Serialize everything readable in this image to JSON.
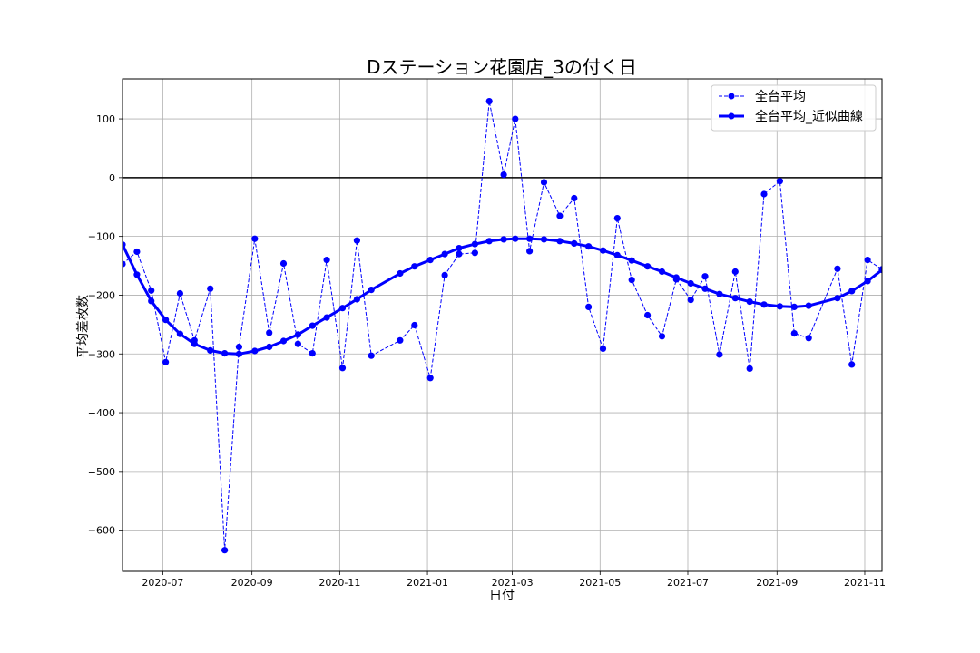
{
  "chart_data": {
    "type": "line",
    "title": "Dステーション花園店_3の付く日",
    "xlabel": "日付",
    "ylabel": "平均差枚数",
    "xlim": [
      "2020-06-03",
      "2021-11-13"
    ],
    "ylim": [
      -670,
      168
    ],
    "yticks": [
      100,
      0,
      -100,
      -200,
      -300,
      -400,
      -500,
      -600
    ],
    "ytick_labels": [
      "100",
      "0",
      "−100",
      "−200",
      "−300",
      "−400",
      "−500",
      "−600"
    ],
    "xticks": [
      "2020-07-01",
      "2020-09-01",
      "2020-11-01",
      "2021-01-01",
      "2021-03-01",
      "2021-05-01",
      "2021-07-01",
      "2021-09-01",
      "2021-11-01"
    ],
    "xtick_labels": [
      "2020-07",
      "2020-09",
      "2020-11",
      "2021-01",
      "2021-03",
      "2021-05",
      "2021-07",
      "2021-09",
      "2021-11"
    ],
    "grid": true,
    "hline": 0,
    "legend": {
      "position": "top-right"
    },
    "series": [
      {
        "name": "全台平均",
        "style": "dashed",
        "color": "#0000ff",
        "points": [
          [
            "2020-06-03",
            -147
          ],
          [
            "2020-06-13",
            -126
          ],
          [
            "2020-06-23",
            -192
          ],
          [
            "2020-07-03",
            -314
          ],
          [
            "2020-07-13",
            -197
          ],
          [
            "2020-07-23",
            -277
          ],
          [
            "2020-08-03",
            -189
          ],
          [
            "2020-08-13",
            -634
          ],
          [
            "2020-08-23",
            -288
          ],
          [
            "2020-09-03",
            -104
          ],
          [
            "2020-09-13",
            -264
          ],
          [
            "2020-09-23",
            -146
          ],
          [
            "2020-10-03",
            -283
          ],
          [
            "2020-10-13",
            -299
          ],
          [
            "2020-10-23",
            -140
          ],
          [
            "2020-11-03",
            -324
          ],
          [
            "2020-11-13",
            -107
          ],
          [
            "2020-11-23",
            -303
          ],
          [
            "2020-12-13",
            -277
          ],
          [
            "2020-12-23",
            -251
          ],
          [
            "2021-01-03",
            -341
          ],
          [
            "2021-01-13",
            -166
          ],
          [
            "2021-01-23",
            -130
          ],
          [
            "2021-02-03",
            -128
          ],
          [
            "2021-02-13",
            130
          ],
          [
            "2021-02-23",
            5
          ],
          [
            "2021-03-03",
            100
          ],
          [
            "2021-03-13",
            -125
          ],
          [
            "2021-03-23",
            -8
          ],
          [
            "2021-04-03",
            -65
          ],
          [
            "2021-04-13",
            -35
          ],
          [
            "2021-04-23",
            -220
          ],
          [
            "2021-05-03",
            -291
          ],
          [
            "2021-05-13",
            -69
          ],
          [
            "2021-05-23",
            -174
          ],
          [
            "2021-06-03",
            -234
          ],
          [
            "2021-06-13",
            -270
          ],
          [
            "2021-06-23",
            -173
          ],
          [
            "2021-07-03",
            -208
          ],
          [
            "2021-07-13",
            -168
          ],
          [
            "2021-07-23",
            -301
          ],
          [
            "2021-08-03",
            -160
          ],
          [
            "2021-08-13",
            -325
          ],
          [
            "2021-08-23",
            -28
          ],
          [
            "2021-09-03",
            -6
          ],
          [
            "2021-09-13",
            -265
          ],
          [
            "2021-09-23",
            -273
          ],
          [
            "2021-10-13",
            -155
          ],
          [
            "2021-10-23",
            -318
          ],
          [
            "2021-11-03",
            -140
          ],
          [
            "2021-11-13",
            -156
          ]
        ]
      },
      {
        "name": "全台平均_近似曲線",
        "style": "solid",
        "color": "#0000ff",
        "points": [
          [
            "2020-06-03",
            -114
          ],
          [
            "2020-06-13",
            -165
          ],
          [
            "2020-06-23",
            -210
          ],
          [
            "2020-07-03",
            -242
          ],
          [
            "2020-07-13",
            -266
          ],
          [
            "2020-07-23",
            -283
          ],
          [
            "2020-08-03",
            -294
          ],
          [
            "2020-08-13",
            -299
          ],
          [
            "2020-08-23",
            -300
          ],
          [
            "2020-09-03",
            -295
          ],
          [
            "2020-09-13",
            -288
          ],
          [
            "2020-09-23",
            -278
          ],
          [
            "2020-10-03",
            -267
          ],
          [
            "2020-10-13",
            -252
          ],
          [
            "2020-10-23",
            -238
          ],
          [
            "2020-11-03",
            -222
          ],
          [
            "2020-11-13",
            -207
          ],
          [
            "2020-11-23",
            -191
          ],
          [
            "2020-12-13",
            -163
          ],
          [
            "2020-12-23",
            -151
          ],
          [
            "2021-01-03",
            -140
          ],
          [
            "2021-01-13",
            -130
          ],
          [
            "2021-01-23",
            -120
          ],
          [
            "2021-02-03",
            -113
          ],
          [
            "2021-02-13",
            -108
          ],
          [
            "2021-02-23",
            -105
          ],
          [
            "2021-03-03",
            -104
          ],
          [
            "2021-03-13",
            -104
          ],
          [
            "2021-03-23",
            -105
          ],
          [
            "2021-04-03",
            -108
          ],
          [
            "2021-04-13",
            -112
          ],
          [
            "2021-04-23",
            -117
          ],
          [
            "2021-05-03",
            -124
          ],
          [
            "2021-05-13",
            -132
          ],
          [
            "2021-05-23",
            -141
          ],
          [
            "2021-06-03",
            -151
          ],
          [
            "2021-06-13",
            -160
          ],
          [
            "2021-06-23",
            -170
          ],
          [
            "2021-07-03",
            -180
          ],
          [
            "2021-07-13",
            -189
          ],
          [
            "2021-07-23",
            -198
          ],
          [
            "2021-08-03",
            -205
          ],
          [
            "2021-08-13",
            -211
          ],
          [
            "2021-08-23",
            -216
          ],
          [
            "2021-09-03",
            -219
          ],
          [
            "2021-09-13",
            -220
          ],
          [
            "2021-09-23",
            -218
          ],
          [
            "2021-10-13",
            -205
          ],
          [
            "2021-10-23",
            -193
          ],
          [
            "2021-11-03",
            -176
          ],
          [
            "2021-11-13",
            -157
          ]
        ]
      }
    ]
  }
}
